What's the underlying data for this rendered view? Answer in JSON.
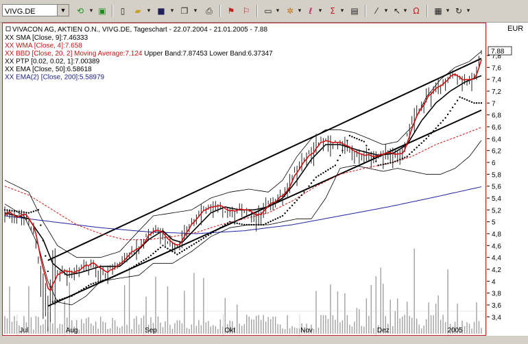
{
  "toolbar": {
    "symbol": "VIVG.DE",
    "currency": "EUR"
  },
  "legend": {
    "header": "VIVACON AG,  AKTIEN O.N., VIVG.DE, Tageschart - 22.07.2004 - 21.01.2005 - 7.88",
    "lines": [
      {
        "prefix": "XX",
        "text": "SMA [Close, 9]:7.46333",
        "color": "#000000"
      },
      {
        "prefix": "XX",
        "text": "WMA [Close, 4]:7.658",
        "color": "#d01010"
      },
      {
        "prefix": "XX",
        "text": "BBD [Close, 20, 2] Moving Average:7.124",
        "extra": "Upper Band:7.87453 Lower Band:6.37347",
        "color": "#d01010"
      },
      {
        "prefix": "XX",
        "text": "PTP [0.02, 0.02, 1]:7.00389",
        "color": "#000000"
      },
      {
        "prefix": "XX",
        "text": "EMA [Close, 50]:6.58618",
        "color": "#000000"
      },
      {
        "prefix": "XX",
        "text": "EMA(2) [Close, 200]:5.58979",
        "color": "#202090"
      }
    ]
  },
  "last_price_label": "7.88",
  "colors": {
    "candle": "#202020",
    "wma": "#d01010",
    "bollinger": "#000000",
    "ema200": "#2020a0",
    "sma": "#000000",
    "volume": "#a0a0a0",
    "frame": "#c02020"
  },
  "chart_data": {
    "type": "line",
    "title": "VIVACON AG,  AKTIEN O.N., VIVG.DE, Tageschart - 22.07.2004 - 21.01.2005 - 7.88",
    "xlabel": "",
    "ylabel": "",
    "ylim": [
      3.3,
      7.95
    ],
    "y_ticks": [
      3.4,
      3.6,
      3.8,
      4,
      4.2,
      4.4,
      4.6,
      4.8,
      5,
      5.2,
      5.4,
      5.6,
      5.8,
      6,
      6.2,
      6.4,
      6.6,
      6.8,
      7,
      7.2,
      7.4,
      7.6,
      7.8
    ],
    "y_tick_labels": [
      "3,4",
      "3,6",
      "3,8",
      "4",
      "4,2",
      "4,4",
      "4,6",
      "4,8",
      "5",
      "5,2",
      "5,4",
      "5,6",
      "5,8",
      "6",
      "6,2",
      "6,4",
      "6,6",
      "6,8",
      "7",
      "7,2",
      "7,4",
      "7,6",
      "7,8"
    ],
    "x_labels": [
      {
        "i": 8,
        "label": "Jul"
      },
      {
        "i": 28,
        "label": "Aug"
      },
      {
        "i": 61,
        "label": "Sep"
      },
      {
        "i": 94,
        "label": "Okt"
      },
      {
        "i": 126,
        "label": "Nov"
      },
      {
        "i": 158,
        "label": "Dez"
      },
      {
        "i": 188,
        "label": "2005"
      }
    ],
    "n": 200,
    "close_key": [
      [
        0,
        5.15
      ],
      [
        8,
        5.1
      ],
      [
        12,
        4.9
      ],
      [
        14,
        4.3
      ],
      [
        17,
        4.0
      ],
      [
        18,
        3.7
      ],
      [
        20,
        4.1
      ],
      [
        24,
        4.15
      ],
      [
        28,
        4.15
      ],
      [
        32,
        4.2
      ],
      [
        36,
        4.3
      ],
      [
        42,
        4.15
      ],
      [
        48,
        4.3
      ],
      [
        52,
        4.5
      ],
      [
        56,
        4.6
      ],
      [
        60,
        4.8
      ],
      [
        64,
        4.9
      ],
      [
        68,
        4.7
      ],
      [
        72,
        4.6
      ],
      [
        76,
        4.9
      ],
      [
        80,
        5.1
      ],
      [
        84,
        5.2
      ],
      [
        88,
        5.3
      ],
      [
        92,
        5.2
      ],
      [
        96,
        5.2
      ],
      [
        100,
        5.25
      ],
      [
        104,
        5.1
      ],
      [
        108,
        5.2
      ],
      [
        112,
        5.35
      ],
      [
        116,
        5.45
      ],
      [
        120,
        5.8
      ],
      [
        124,
        6.0
      ],
      [
        128,
        6.2
      ],
      [
        132,
        6.35
      ],
      [
        136,
        6.35
      ],
      [
        140,
        6.3
      ],
      [
        146,
        6.15
      ],
      [
        150,
        6.1
      ],
      [
        156,
        6.15
      ],
      [
        160,
        6.15
      ],
      [
        166,
        6.2
      ],
      [
        170,
        6.7
      ],
      [
        174,
        7.0
      ],
      [
        178,
        7.2
      ],
      [
        182,
        7.3
      ],
      [
        186,
        7.5
      ],
      [
        190,
        7.4
      ],
      [
        194,
        7.35
      ],
      [
        196,
        7.45
      ],
      [
        199,
        7.88
      ]
    ],
    "sma_key": [
      [
        0,
        5.15
      ],
      [
        10,
        5.05
      ],
      [
        16,
        4.7
      ],
      [
        20,
        4.3
      ],
      [
        26,
        4.1
      ],
      [
        32,
        4.15
      ],
      [
        40,
        4.25
      ],
      [
        48,
        4.25
      ],
      [
        54,
        4.45
      ],
      [
        60,
        4.7
      ],
      [
        66,
        4.85
      ],
      [
        70,
        4.7
      ],
      [
        74,
        4.65
      ],
      [
        80,
        4.9
      ],
      [
        86,
        5.15
      ],
      [
        92,
        5.25
      ],
      [
        98,
        5.2
      ],
      [
        104,
        5.2
      ],
      [
        110,
        5.25
      ],
      [
        116,
        5.4
      ],
      [
        122,
        5.7
      ],
      [
        128,
        6.05
      ],
      [
        134,
        6.3
      ],
      [
        140,
        6.3
      ],
      [
        148,
        6.2
      ],
      [
        156,
        6.12
      ],
      [
        162,
        6.15
      ],
      [
        168,
        6.3
      ],
      [
        174,
        6.7
      ],
      [
        180,
        7.0
      ],
      [
        186,
        7.2
      ],
      [
        192,
        7.35
      ],
      [
        199,
        7.46
      ]
    ],
    "bb_upper_key": [
      [
        0,
        5.7
      ],
      [
        10,
        5.5
      ],
      [
        16,
        5.0
      ],
      [
        22,
        4.6
      ],
      [
        30,
        4.4
      ],
      [
        40,
        4.4
      ],
      [
        48,
        4.5
      ],
      [
        56,
        4.85
      ],
      [
        62,
        5.1
      ],
      [
        70,
        5.15
      ],
      [
        78,
        5.2
      ],
      [
        86,
        5.4
      ],
      [
        94,
        5.5
      ],
      [
        102,
        5.55
      ],
      [
        110,
        5.5
      ],
      [
        116,
        5.7
      ],
      [
        122,
        6.1
      ],
      [
        128,
        6.4
      ],
      [
        134,
        6.55
      ],
      [
        140,
        6.55
      ],
      [
        146,
        6.5
      ],
      [
        152,
        6.4
      ],
      [
        158,
        6.3
      ],
      [
        164,
        6.35
      ],
      [
        170,
        6.6
      ],
      [
        176,
        7.1
      ],
      [
        182,
        7.4
      ],
      [
        188,
        7.6
      ],
      [
        194,
        7.7
      ],
      [
        199,
        7.87
      ]
    ],
    "bb_lower_key": [
      [
        0,
        5.3
      ],
      [
        8,
        5.1
      ],
      [
        14,
        4.6
      ],
      [
        18,
        4.0
      ],
      [
        22,
        3.65
      ],
      [
        28,
        3.6
      ],
      [
        34,
        3.75
      ],
      [
        40,
        4.0
      ],
      [
        48,
        4.05
      ],
      [
        56,
        4.1
      ],
      [
        62,
        4.3
      ],
      [
        70,
        4.3
      ],
      [
        78,
        4.5
      ],
      [
        86,
        4.75
      ],
      [
        94,
        4.9
      ],
      [
        102,
        4.95
      ],
      [
        110,
        4.95
      ],
      [
        116,
        5.0
      ],
      [
        122,
        5.05
      ],
      [
        128,
        5.05
      ],
      [
        134,
        5.4
      ],
      [
        140,
        5.9
      ],
      [
        146,
        5.95
      ],
      [
        152,
        5.9
      ],
      [
        158,
        5.85
      ],
      [
        164,
        5.9
      ],
      [
        170,
        5.85
      ],
      [
        176,
        5.8
      ],
      [
        182,
        5.8
      ],
      [
        188,
        5.9
      ],
      [
        194,
        6.1
      ],
      [
        199,
        6.37
      ]
    ],
    "ema50_key": [
      [
        0,
        5.6
      ],
      [
        10,
        5.45
      ],
      [
        20,
        5.2
      ],
      [
        30,
        4.95
      ],
      [
        40,
        4.8
      ],
      [
        50,
        4.7
      ],
      [
        60,
        4.7
      ],
      [
        70,
        4.75
      ],
      [
        80,
        4.82
      ],
      [
        90,
        4.95
      ],
      [
        100,
        5.05
      ],
      [
        110,
        5.15
      ],
      [
        120,
        5.35
      ],
      [
        130,
        5.6
      ],
      [
        140,
        5.8
      ],
      [
        150,
        5.9
      ],
      [
        160,
        5.98
      ],
      [
        170,
        6.1
      ],
      [
        180,
        6.3
      ],
      [
        190,
        6.45
      ],
      [
        199,
        6.59
      ]
    ],
    "ema200_key": [
      [
        0,
        5.1
      ],
      [
        20,
        5.0
      ],
      [
        40,
        4.9
      ],
      [
        60,
        4.83
      ],
      [
        80,
        4.8
      ],
      [
        100,
        4.85
      ],
      [
        120,
        4.95
      ],
      [
        140,
        5.1
      ],
      [
        160,
        5.25
      ],
      [
        180,
        5.42
      ],
      [
        199,
        5.59
      ]
    ],
    "psar_key": [
      [
        0,
        5.2
      ],
      [
        10,
        5.15
      ],
      [
        14,
        5.2
      ],
      [
        20,
        3.65
      ],
      [
        28,
        3.75
      ],
      [
        36,
        3.95
      ],
      [
        44,
        4.05
      ],
      [
        52,
        4.2
      ],
      [
        60,
        4.4
      ],
      [
        66,
        4.6
      ],
      [
        72,
        4.45
      ],
      [
        80,
        4.65
      ],
      [
        88,
        4.85
      ],
      [
        94,
        5.0
      ],
      [
        100,
        4.95
      ],
      [
        108,
        4.95
      ],
      [
        116,
        5.1
      ],
      [
        124,
        5.45
      ],
      [
        130,
        5.75
      ],
      [
        138,
        5.95
      ],
      [
        144,
        6.45
      ],
      [
        150,
        6.35
      ],
      [
        156,
        5.95
      ],
      [
        162,
        6.0
      ],
      [
        168,
        6.1
      ],
      [
        176,
        6.4
      ],
      [
        184,
        6.75
      ],
      [
        190,
        7.1
      ],
      [
        196,
        7.0
      ],
      [
        199,
        7.0
      ]
    ],
    "channel_lines": [
      {
        "x1": 18,
        "y1": 4.35,
        "x2": 199,
        "y2": 7.75
      },
      {
        "x1": 18,
        "y1": 3.58,
        "x2": 199,
        "y2": 6.88
      }
    ],
    "volume_max": 1.0
  }
}
